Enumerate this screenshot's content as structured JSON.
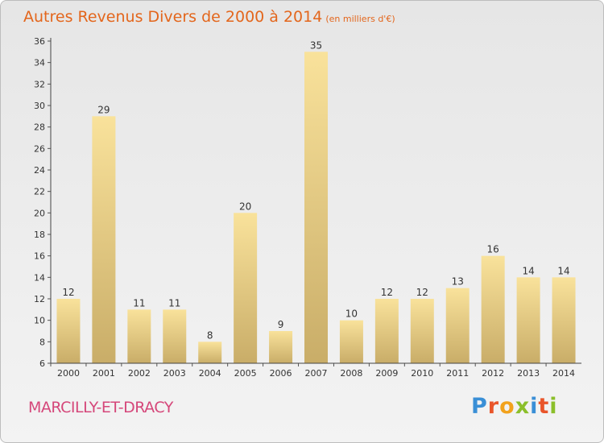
{
  "chart_data": {
    "type": "bar",
    "title": "Autres Revenus Divers de 2000 à 2014",
    "unit_label": "(en milliers d'€)",
    "categories": [
      "2000",
      "2001",
      "2002",
      "2003",
      "2004",
      "2005",
      "2006",
      "2007",
      "2008",
      "2009",
      "2010",
      "2011",
      "2012",
      "2013",
      "2014"
    ],
    "values": [
      12,
      29,
      11,
      11,
      8,
      20,
      9,
      35,
      10,
      12,
      12,
      13,
      16,
      14,
      14
    ],
    "yticks": [
      6,
      8,
      10,
      12,
      14,
      16,
      18,
      20,
      22,
      24,
      26,
      28,
      30,
      32,
      34,
      36
    ],
    "ylim": [
      6,
      36
    ],
    "grid": false,
    "bar_color_top": "#f9e29b",
    "bar_color_bottom": "#c9ad68"
  },
  "commune": "MARCILLY-ET-DRACY",
  "logo": {
    "text": "Proxiti",
    "letters": [
      {
        "ch": "P",
        "color": "#3a8fd6"
      },
      {
        "ch": "r",
        "color": "#e9552a"
      },
      {
        "ch": "o",
        "color": "#f2a21c"
      },
      {
        "ch": "x",
        "color": "#8bbf2a"
      },
      {
        "ch": "i",
        "color": "#3a8fd6"
      },
      {
        "ch": "t",
        "color": "#e9552a"
      },
      {
        "ch": "i",
        "color": "#8bbf2a"
      }
    ]
  }
}
